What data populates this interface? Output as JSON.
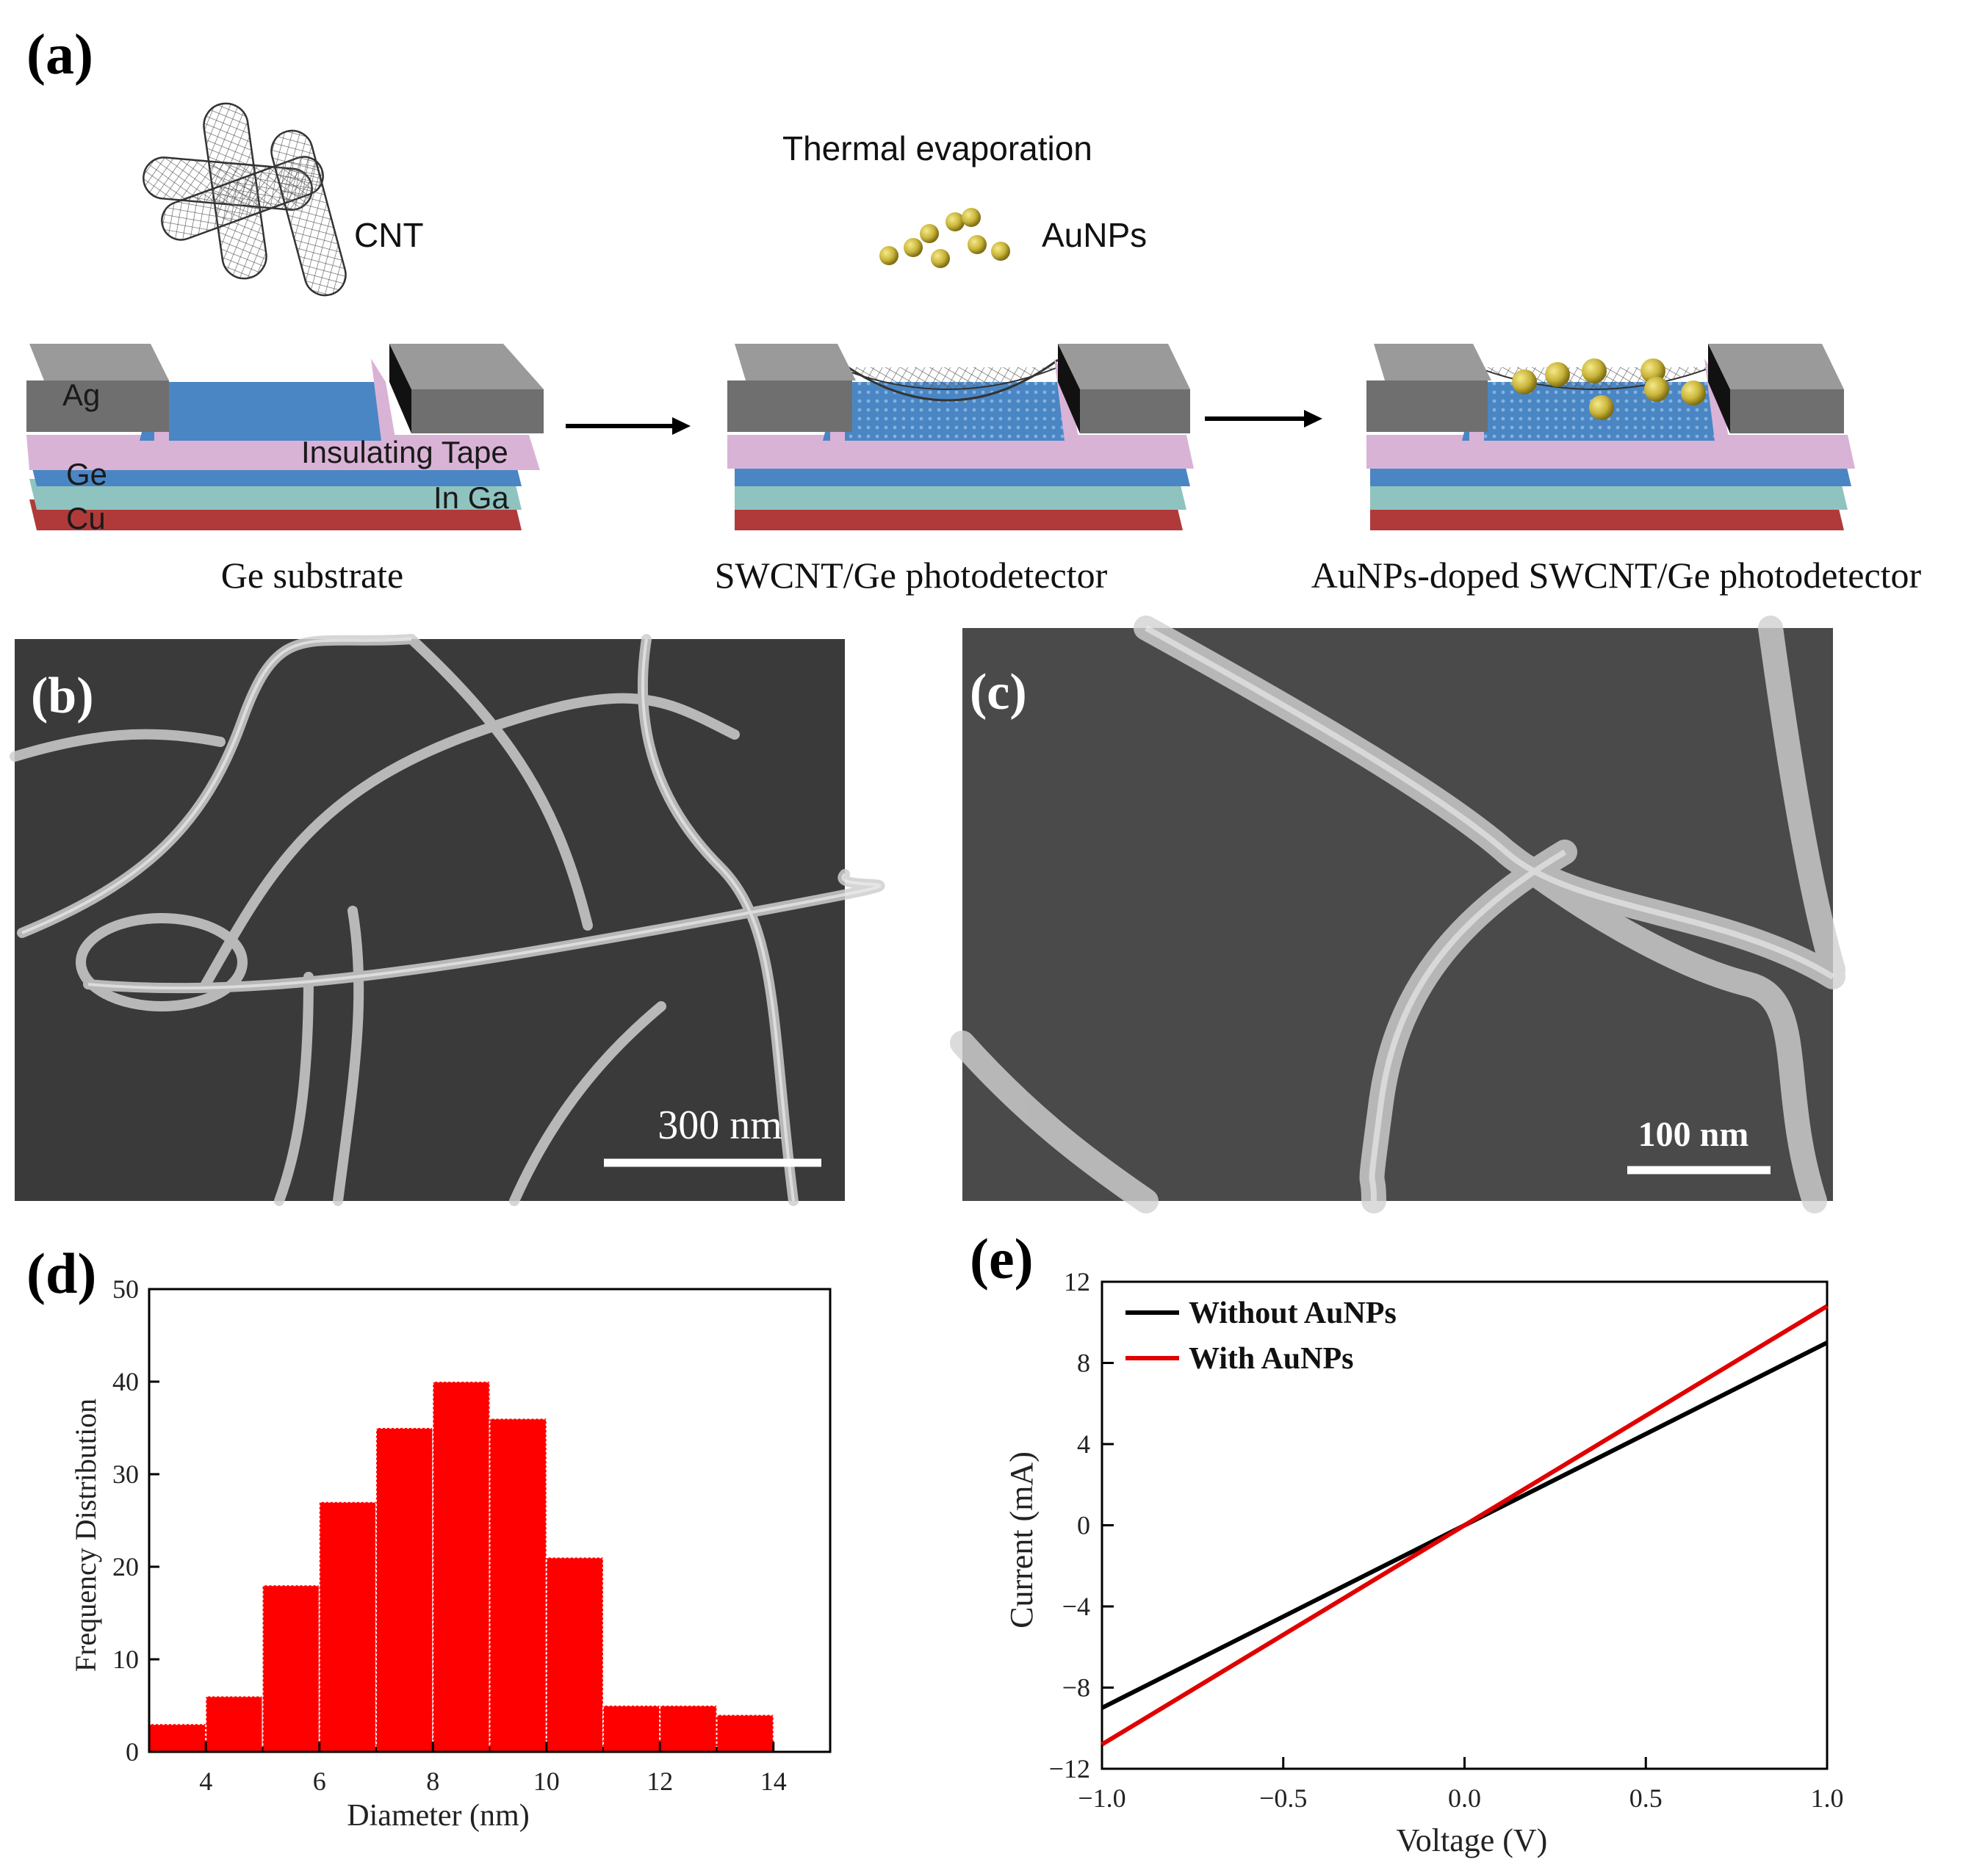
{
  "panel_labels": {
    "a": "(a)",
    "b": "(b)",
    "c": "(c)",
    "d": "(d)",
    "e": "(e)"
  },
  "schematic": {
    "cnt_label": "CNT",
    "thermal_label": "Thermal evaporation",
    "aunps_label": "AuNPs",
    "layers": {
      "ag": "Ag",
      "ge": "Ge",
      "cu": "Cu",
      "tape": "Insulating Tape",
      "inga": "In Ga"
    },
    "captions": [
      "Ge substrate",
      "SWCNT/Ge photodetector",
      "AuNPs-doped SWCNT/Ge photodetector"
    ],
    "colors": {
      "silver": "#7d7d7d",
      "tape": "#d9b3d6",
      "ge": "#4a86c4",
      "inga": "#8fc3c0",
      "cu": "#b03a3a",
      "gold": "#c9b53a"
    }
  },
  "sem": {
    "b_scale": "300 nm",
    "c_scale": "100 nm"
  },
  "chart_data": [
    {
      "type": "bar",
      "panel": "(d)",
      "xlabel": "Diameter (nm)",
      "ylabel": "Frequency Distribution",
      "bin_edges": [
        3,
        4,
        5,
        6,
        7,
        8,
        9,
        10,
        11,
        12,
        13,
        14
      ],
      "values": [
        3,
        6,
        18,
        27,
        35,
        40,
        36,
        21,
        5,
        5,
        4
      ],
      "xlim": [
        3,
        15
      ],
      "ylim": [
        0,
        50
      ],
      "xticks": [
        "4",
        "6",
        "8",
        "10",
        "12",
        "14"
      ],
      "xtick_values": [
        4,
        6,
        8,
        10,
        12,
        14
      ],
      "yticks": [
        "0",
        "10",
        "20",
        "30",
        "40",
        "50"
      ],
      "ytick_values": [
        0,
        10,
        20,
        30,
        40,
        50
      ],
      "color": "#ff0000"
    },
    {
      "type": "line",
      "panel": "(e)",
      "xlabel": "Voltage (V)",
      "ylabel": "Current (mA)",
      "xlim": [
        -1.0,
        1.0
      ],
      "ylim": [
        -12,
        12
      ],
      "xticks": [
        "−1.0",
        "−0.5",
        "0.0",
        "0.5",
        "1.0"
      ],
      "xtick_values": [
        -1.0,
        -0.5,
        0.0,
        0.5,
        1.0
      ],
      "yticks": [
        "−12",
        "−8",
        "−4",
        "0",
        "4",
        "8",
        "12"
      ],
      "ytick_values": [
        -12,
        -8,
        -4,
        0,
        4,
        8,
        12
      ],
      "series": [
        {
          "name": "Without AuNPs",
          "color": "#000000",
          "x": [
            -1.0,
            1.0
          ],
          "y": [
            -9.0,
            9.0
          ]
        },
        {
          "name": "With AuNPs",
          "color": "#e00000",
          "x": [
            -1.0,
            1.0
          ],
          "y": [
            -10.8,
            10.8
          ]
        }
      ],
      "legend": "top-left"
    }
  ]
}
